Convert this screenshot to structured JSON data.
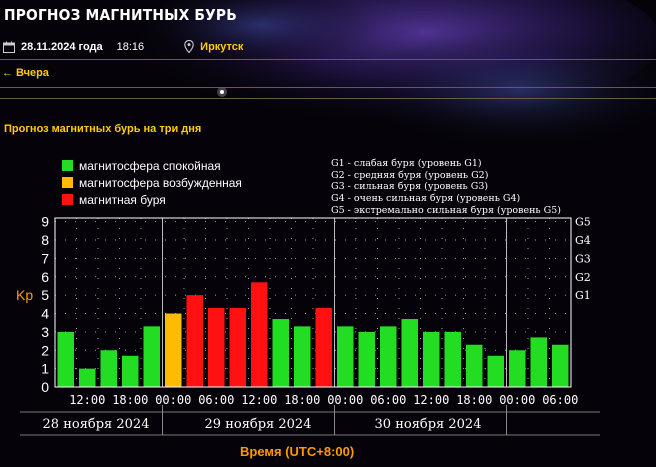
{
  "header": {
    "title": "ПРОГНОЗ МАГНИТНЫХ БУРЬ",
    "date": "28.11.2024 года",
    "time": "18:16",
    "city": "Иркутск",
    "yesterday_link": "← Вчера"
  },
  "section_title": "Прогноз магнитных бурь на три дня",
  "legend": {
    "items": [
      {
        "label": "магнитосфера спокойная",
        "color": "#22dd22"
      },
      {
        "label": "магнитосфера возбужденная",
        "color": "#ffbb00"
      },
      {
        "label": "магнитная буря",
        "color": "#ff1111"
      }
    ],
    "storm_levels": [
      "G1 - слабая буря (уровень G1)",
      "G2 - средняя буря (уровень G2)",
      "G3 - сильная буря (уровень G3)",
      "G4 - очень сильная буря (уровень G4)",
      "G5 - экстремально сильная буря (уровень G5)"
    ]
  },
  "axis": {
    "y_label": "Kp",
    "x_label": "Время (UTC+8:00)",
    "day_labels": [
      "28 ноября 2024",
      "29 ноября 2024",
      "30 ноября 2024"
    ]
  },
  "chart_data": {
    "type": "bar",
    "y_ticks": [
      "0",
      "1",
      "2",
      "3",
      "4",
      "5",
      "6",
      "7",
      "8",
      "9"
    ],
    "right_ticks": [
      "G1",
      "G2",
      "G3",
      "G4",
      "G5"
    ],
    "x_tick_labels": [
      "12:00",
      "18:00",
      "00:00",
      "06:00",
      "12:00",
      "18:00",
      "00:00",
      "06:00",
      "12:00",
      "18:00",
      "00:00",
      "06:00"
    ],
    "ylim": [
      0,
      9
    ],
    "values": [
      3.0,
      1.0,
      2.0,
      1.7,
      3.3,
      4.0,
      5.0,
      4.3,
      4.3,
      5.7,
      3.7,
      3.3,
      4.3,
      3.3,
      3.0,
      3.3,
      3.7,
      3.0,
      3.0,
      2.3,
      1.7,
      2.0,
      2.7,
      2.3
    ],
    "levels": [
      "quiet",
      "quiet",
      "quiet",
      "quiet",
      "quiet",
      "unsettled",
      "storm",
      "storm",
      "storm",
      "storm",
      "quiet",
      "quiet",
      "storm",
      "quiet",
      "quiet",
      "quiet",
      "quiet",
      "quiet",
      "quiet",
      "quiet",
      "quiet",
      "quiet",
      "quiet",
      "quiet"
    ],
    "colors": {
      "quiet": "#22dd22",
      "unsettled": "#ffbb00",
      "storm": "#ff1111"
    },
    "grid": true
  }
}
